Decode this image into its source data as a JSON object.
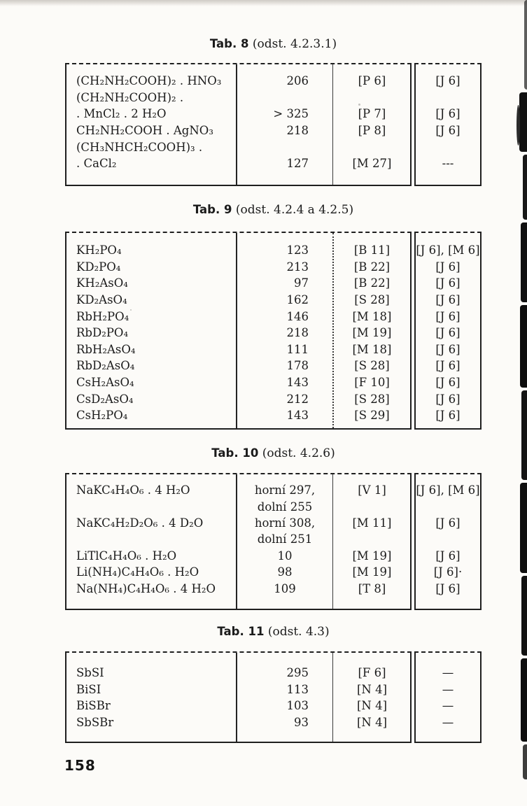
{
  "colors": {
    "ink": "#1b1b1b",
    "paper": "#fcfbf8"
  },
  "page": {
    "number": "158"
  },
  "tables": [
    {
      "title_bold": "Tab. 8",
      "title_rest": " (odst. 4.2.3.1)",
      "rows": [
        {
          "formula": "(CH₂NH₂COOH)₂ . HNO₃",
          "value": "206",
          "ref1": "[P 6]",
          "ref2": "[J 6]"
        },
        {
          "formula": "(CH₂NH₂COOH)₂ .",
          "value": "",
          "ref1": "",
          "ref2": ""
        },
        {
          "formula": ". MnCl₂ . 2 H₂O",
          "value": "> 325",
          "ref1": "[P 7]",
          "ref2": "[J 6]"
        },
        {
          "formula": "CH₂NH₂COOH . AgNO₃",
          "value": "218",
          "ref1": "[P 8]",
          "ref2": "[J 6]"
        },
        {
          "formula": "(CH₃NHCH₂COOH)₃ .",
          "value": "",
          "ref1": "",
          "ref2": ""
        },
        {
          "formula": ". CaCl₂",
          "value": "127",
          "ref1": "[M 27]",
          "ref2": "---"
        }
      ]
    },
    {
      "title_bold": "Tab. 9",
      "title_rest": " (odst. 4.2.4 a 4.2.5)",
      "rows": [
        {
          "formula": "KH₂PO₄",
          "value": "123",
          "ref1": "[B 11]",
          "ref2": "[J 6], [M 6]"
        },
        {
          "formula": "KD₂PO₄",
          "value": "213",
          "ref1": "[B 22]",
          "ref2": "[J 6]"
        },
        {
          "formula": "KH₂AsO₄",
          "value": "97",
          "ref1": "[B 22]",
          "ref2": "[J 6]"
        },
        {
          "formula": "KD₂AsO₄",
          "value": "162",
          "ref1": "[S 28]",
          "ref2": "[J 6]"
        },
        {
          "formula": "RbH₂PO₄",
          "value": "146",
          "ref1": "[M 18]",
          "ref2": "[J 6]"
        },
        {
          "formula": "RbD₂PO₄",
          "value": "218",
          "ref1": "[M 19]",
          "ref2": "[J 6]"
        },
        {
          "formula": "RbH₂AsO₄",
          "value": "111",
          "ref1": "[M 18]",
          "ref2": "[J 6]"
        },
        {
          "formula": "RbD₂AsO₄",
          "value": "178",
          "ref1": "[S 28]",
          "ref2": "[J 6]"
        },
        {
          "formula": "CsH₂AsO₄",
          "value": "143",
          "ref1": "[F 10]",
          "ref2": "[J 6]"
        },
        {
          "formula": "CsD₂AsO₄",
          "value": "212",
          "ref1": "[S 28]",
          "ref2": "[J 6]"
        },
        {
          "formula": "CsH₂PO₄",
          "value": "143",
          "ref1": "[S 29]",
          "ref2": "[J 6]"
        }
      ]
    },
    {
      "title_bold": "Tab. 10",
      "title_rest": " (odst. 4.2.6)",
      "rows": [
        {
          "formula": "NaKC₄H₄O₆ . 4 H₂O",
          "value": "horní 297,",
          "ref1": "[V 1]",
          "ref2": "[J 6], [M 6]"
        },
        {
          "formula": "",
          "value": "dolní 255",
          "ref1": "",
          "ref2": ""
        },
        {
          "formula": "NaKC₄H₂D₂O₆ . 4 D₂O",
          "value": "horní 308,",
          "ref1": "[M 11]",
          "ref2": "[J 6]"
        },
        {
          "formula": "",
          "value": "dolní 251",
          "ref1": "",
          "ref2": ""
        },
        {
          "formula": "LiTlC₄H₄O₆ . H₂O",
          "value": "10",
          "ref1": "[M 19]",
          "ref2": "[J 6]"
        },
        {
          "formula": "Li(NH₄)C₄H₄O₆ . H₂O",
          "value": "98",
          "ref1": "[M 19]",
          "ref2": "[J 6]·"
        },
        {
          "formula": "Na(NH₄)C₄H₄O₆ . 4 H₂O",
          "value": "109",
          "ref1": "[T 8]",
          "ref2": "[J 6]"
        }
      ]
    },
    {
      "title_bold": "Tab. 11",
      "title_rest": " (odst. 4.3)",
      "rows": [
        {
          "formula": "SbSI",
          "value": "295",
          "ref1": "[F 6]",
          "ref2": "—"
        },
        {
          "formula": "BiSI",
          "value": "113",
          "ref1": "[N 4]",
          "ref2": "—"
        },
        {
          "formula": "BiSBr",
          "value": "103",
          "ref1": "[N 4]",
          "ref2": "—"
        },
        {
          "formula": "SbSBr",
          "value": "93",
          "ref1": "[N 4]",
          "ref2": "—"
        }
      ]
    }
  ]
}
